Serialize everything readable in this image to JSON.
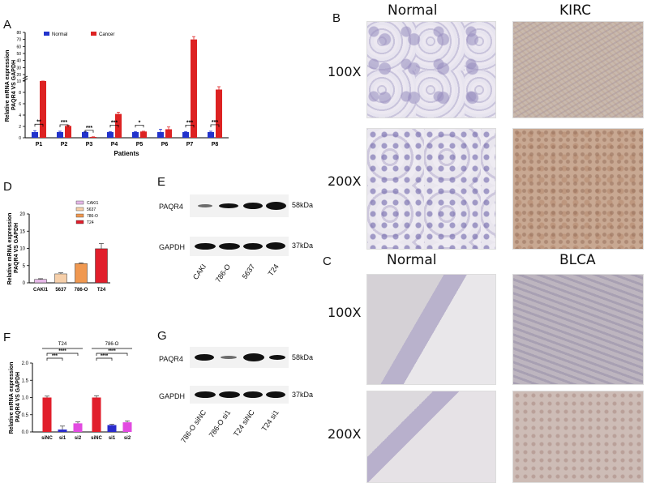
{
  "panels": {
    "a": "A",
    "b": "B",
    "c": "C",
    "d": "D",
    "e": "E",
    "f": "F",
    "g": "G"
  },
  "chart_a": {
    "chart_data": {
      "type": "bar",
      "categories": [
        "P1",
        "P2",
        "P3",
        "P4",
        "P5",
        "P6",
        "P7",
        "P8"
      ],
      "series": [
        {
          "name": "Normal",
          "values": [
            1,
            1,
            1,
            1,
            1,
            1,
            1,
            1
          ],
          "errors": [
            0.25,
            0.15,
            0.1,
            0.1,
            0.1,
            0.5,
            0.1,
            0.15
          ],
          "color": "#2233cc"
        },
        {
          "name": "Cancer",
          "values": [
            10,
            2.1,
            0.15,
            4.2,
            1.1,
            1.5,
            70,
            8.5
          ],
          "errors": [
            1.0,
            0.1,
            0.02,
            0.3,
            0.05,
            0.4,
            4,
            0.5
          ],
          "color": "#dd2222"
        }
      ],
      "significance": [
        "**",
        "***",
        "***",
        "***",
        "*",
        "",
        "***",
        "***"
      ],
      "xlabel": "Patients",
      "ylabel": "Relative mRNA expression\nPAQR4 VS GAPDH",
      "yticks_lower": [
        "0",
        "2",
        "4",
        "6",
        "8",
        "10"
      ],
      "yticks_upper": [
        "20",
        "30",
        "40",
        "50",
        "60",
        "70",
        "80"
      ]
    }
  },
  "chart_d": {
    "chart_data": {
      "type": "bar",
      "categories": [
        "CAKI1",
        "5637",
        "786-O",
        "T24"
      ],
      "values": [
        1,
        2.6,
        5.6,
        9.9
      ],
      "errors": [
        0.2,
        0.3,
        0.2,
        1.5
      ],
      "colors": [
        "#e6b8e8",
        "#f6cfa9",
        "#f09850",
        "#e11e2b"
      ],
      "legend": [
        "CAKI1",
        "5637",
        "786-O",
        "T24"
      ],
      "ylabel": "Relative mRNA expression\nPAQR4 VS GAPDH",
      "yticks": [
        "0",
        "5",
        "10",
        "15",
        "20"
      ],
      "ylim": [
        0,
        20
      ]
    }
  },
  "chart_f": {
    "chart_data": {
      "type": "bar",
      "categories": [
        "siNC",
        "si1",
        "si2",
        "siNC",
        "si1",
        "si2"
      ],
      "values": [
        1.0,
        0.07,
        0.25,
        1.0,
        0.2,
        0.28
      ],
      "errors": [
        0.04,
        0.1,
        0.04,
        0.05,
        0.02,
        0.04
      ],
      "colors": [
        "#e11e2b",
        "#2a2ccc",
        "#e24be0",
        "#e11e2b",
        "#2a2ccc",
        "#e24be0"
      ],
      "groups": [
        "T24",
        "786-O"
      ],
      "significance": [
        "***",
        "****",
        "****",
        "****"
      ],
      "ylabel": "Relative mRNA expression\nPAQR4 VS GAPDH",
      "yticks": [
        "0.0",
        "0.5",
        "1.0",
        "1.5",
        "2.0"
      ],
      "ylim": [
        0,
        2
      ]
    }
  },
  "blot_e": {
    "rows": [
      {
        "label": "PAQR4",
        "size": "58kDa"
      },
      {
        "label": "GAPDH",
        "size": "37kDa"
      }
    ],
    "lanes": [
      "CAKI",
      "786-O",
      "5637",
      "T24"
    ]
  },
  "blot_g": {
    "rows": [
      {
        "label": "PAQR4",
        "size": "58kDa"
      },
      {
        "label": "GAPDH",
        "size": "37kDa"
      }
    ],
    "lanes": [
      "786-O siNC",
      "786-O si1",
      "T24 siNC",
      "T24 si1"
    ]
  },
  "histology_b": {
    "col1": "Normal",
    "col2": "KIRC",
    "row1": "100X",
    "row2": "200X"
  },
  "histology_c": {
    "col1": "Normal",
    "col2": "BLCA",
    "row1": "100X",
    "row2": "200X"
  }
}
